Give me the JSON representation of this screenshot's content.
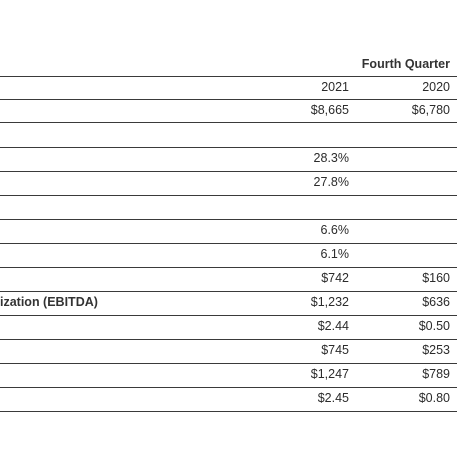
{
  "header": {
    "group_label": "Fourth Quarter",
    "columns": [
      "2021",
      "2020"
    ]
  },
  "rows": [
    {
      "label": "",
      "v2021": "$8,665",
      "v2020": "$6,780"
    },
    {
      "label": "",
      "v2021": "",
      "v2020": ""
    },
    {
      "label": "",
      "v2021": "28.3%",
      "v2020": ""
    },
    {
      "label": "",
      "v2021": "27.8%",
      "v2020": ""
    },
    {
      "label": "",
      "v2021": "",
      "v2020": ""
    },
    {
      "label": "",
      "v2021": "6.6%",
      "v2020": ""
    },
    {
      "label": "",
      "v2021": "6.1%",
      "v2020": ""
    },
    {
      "label": "",
      "v2021": "$742",
      "v2020": "$160"
    },
    {
      "label": "ization (EBITDA)",
      "v2021": "$1,232",
      "v2020": "$636"
    },
    {
      "label": "",
      "v2021": "$2.44",
      "v2020": "$0.50"
    },
    {
      "label": "",
      "v2021": "$745",
      "v2020": "$253"
    },
    {
      "label": "",
      "v2021": "$1,247",
      "v2020": "$789"
    },
    {
      "label": "",
      "v2021": "$2.45",
      "v2020": "$0.80"
    }
  ]
}
